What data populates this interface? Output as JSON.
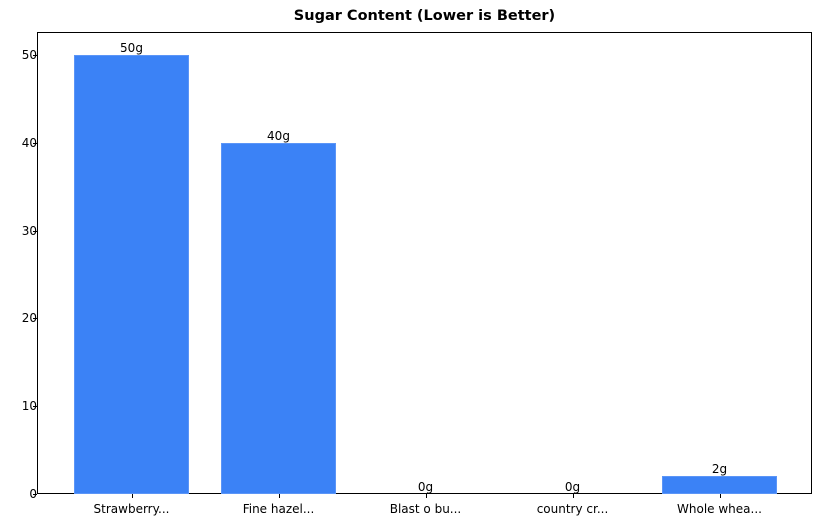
{
  "chart_data": {
    "type": "bar",
    "title": "Sugar Content (Lower is Better)",
    "xlabel": "",
    "ylabel": "",
    "categories": [
      "Strawberry...",
      "Fine hazel...",
      "Blast o bu...",
      "country cr...",
      "Whole whea..."
    ],
    "values": [
      50,
      40,
      0,
      0,
      2
    ],
    "data_labels": [
      "50g",
      "40g",
      "0g",
      "0g",
      "2g"
    ],
    "ylim": [
      0,
      52.5
    ],
    "yticks": [
      0,
      10,
      20,
      30,
      40,
      50
    ],
    "grid": false,
    "legend": null,
    "bar_color": "#3b82f6"
  },
  "yticks_labels": [
    "0",
    "10",
    "20",
    "30",
    "40",
    "50"
  ]
}
